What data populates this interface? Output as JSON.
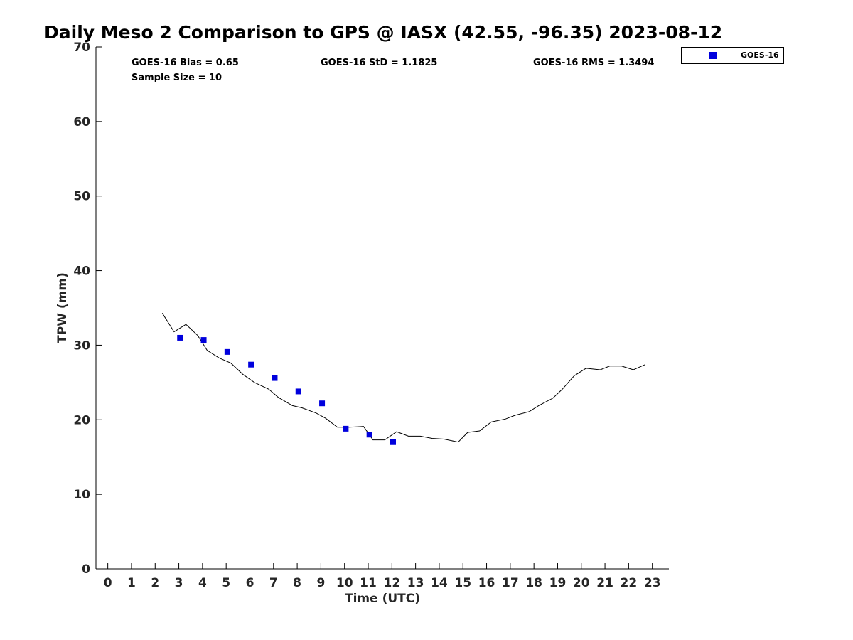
{
  "chart_data": {
    "type": "line",
    "title": "Daily Meso 2 Comparison to GPS @ IASX (42.55, -96.35) 2023-08-12",
    "xlabel": "Time (UTC)",
    "ylabel": "TPW (mm)",
    "xlim": [
      -0.5,
      23.7
    ],
    "ylim": [
      0,
      70
    ],
    "x_ticks": [
      0,
      1,
      2,
      3,
      4,
      5,
      6,
      7,
      8,
      9,
      10,
      11,
      12,
      13,
      14,
      15,
      16,
      17,
      18,
      19,
      20,
      21,
      22,
      23
    ],
    "y_ticks": [
      0,
      10,
      20,
      30,
      40,
      50,
      60,
      70
    ],
    "grid": false,
    "legend_position": "top-right",
    "stats": {
      "bias": "GOES-16 Bias = 0.65",
      "std": "GOES-16 StD = 1.1825",
      "rms": "GOES-16 RMS = 1.3494",
      "sample_size": "Sample Size = 10"
    },
    "series": [
      {
        "name": "",
        "kind": "line",
        "color": "#000000",
        "x": [
          2.3,
          2.8,
          3.3,
          3.8,
          4.2,
          4.7,
          5.2,
          5.7,
          6.2,
          6.8,
          7.2,
          7.8,
          8.2,
          8.8,
          9.2,
          9.7,
          10.2,
          10.8,
          11.2,
          11.7,
          12.2,
          12.7,
          13.2,
          13.7,
          14.2,
          14.8,
          15.2,
          15.7,
          16.2,
          16.8,
          17.2,
          17.8,
          18.2,
          18.8,
          19.2,
          19.7,
          20.2,
          20.8,
          21.2,
          21.7,
          22.2,
          22.7
        ],
        "y": [
          34.3,
          31.8,
          32.8,
          31.3,
          29.3,
          28.3,
          27.6,
          26.1,
          25.0,
          24.1,
          23.0,
          21.9,
          21.6,
          20.9,
          20.2,
          19.0,
          19.0,
          19.1,
          17.3,
          17.3,
          18.4,
          17.8,
          17.8,
          17.5,
          17.4,
          17.0,
          18.3,
          18.5,
          19.7,
          20.1,
          20.6,
          21.1,
          21.9,
          22.9,
          24.1,
          25.9,
          26.9,
          26.7,
          27.2,
          27.2,
          26.7,
          27.4
        ]
      },
      {
        "name": "GOES-16",
        "kind": "scatter",
        "marker": "square",
        "color": "#0000dd",
        "x": [
          3.05,
          4.05,
          5.05,
          6.05,
          7.05,
          8.05,
          9.05,
          10.05,
          11.05,
          12.05
        ],
        "y": [
          31.0,
          30.7,
          29.1,
          27.4,
          25.6,
          23.8,
          22.2,
          18.8,
          18.0,
          17.0
        ]
      }
    ]
  }
}
